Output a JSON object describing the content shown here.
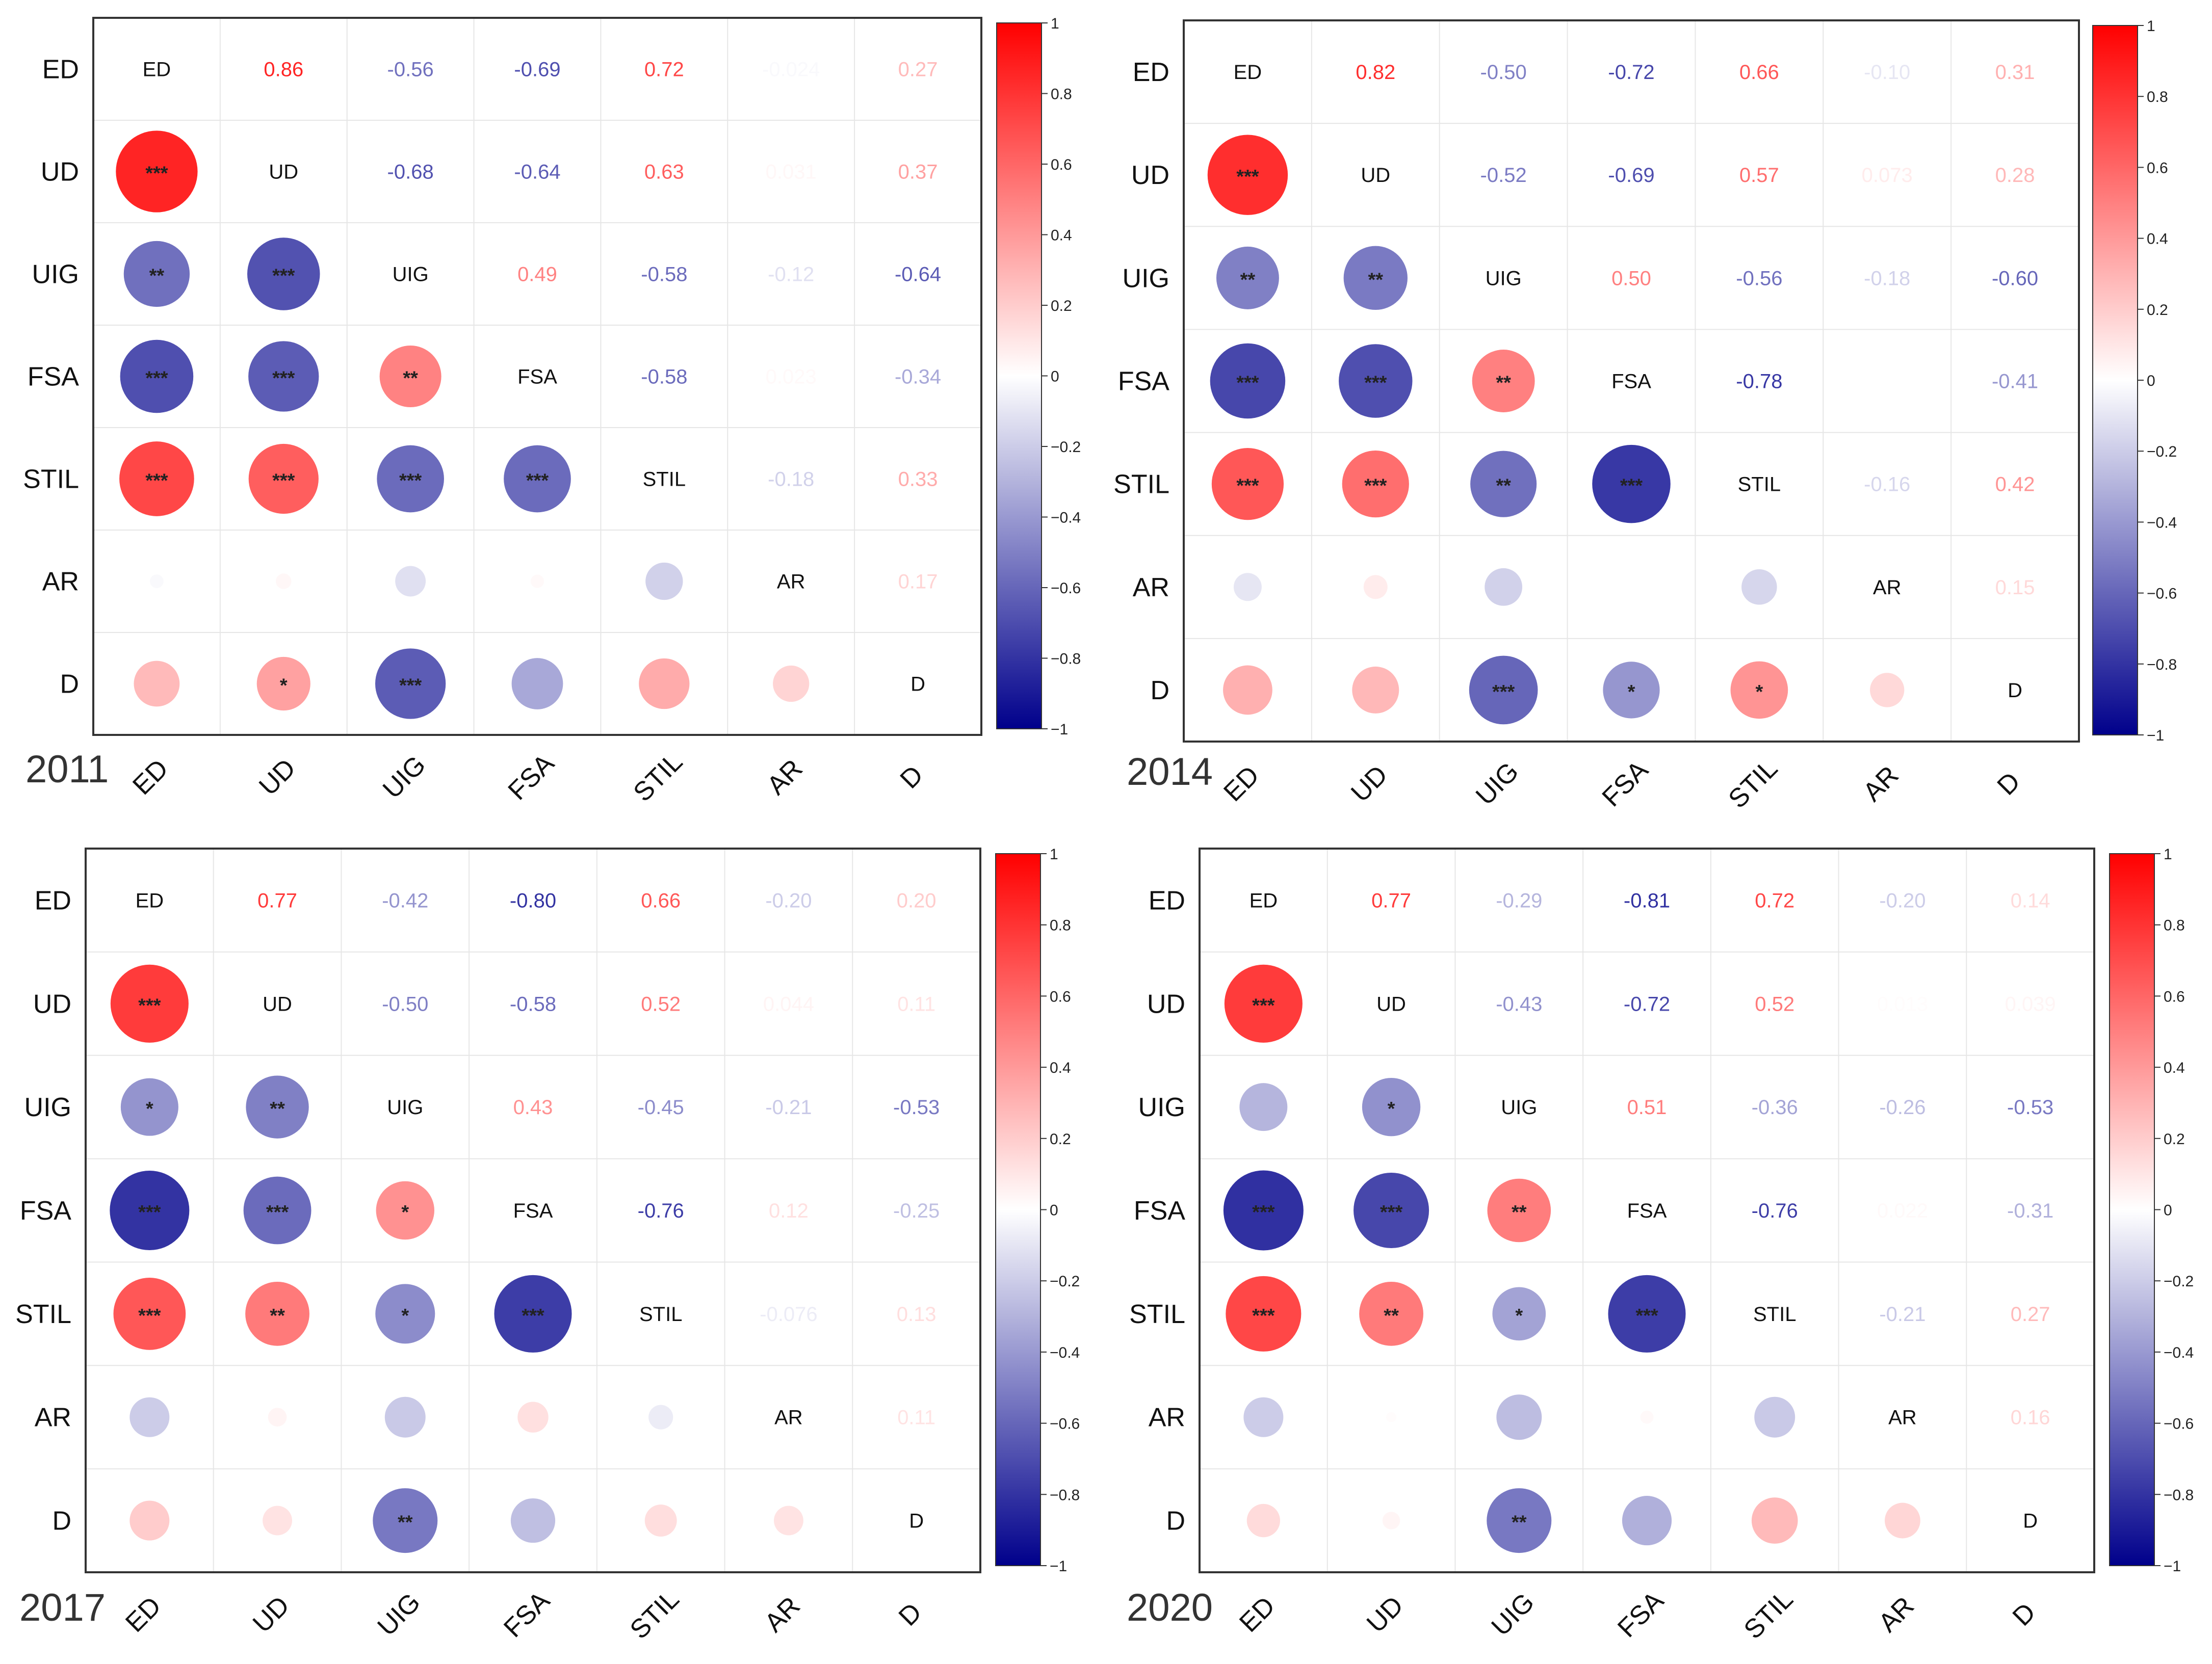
{
  "variables": [
    "ED",
    "UD",
    "UIG",
    "FSA",
    "STIL",
    "AR",
    "D"
  ],
  "colorbar": {
    "ticks": [
      "1",
      "0.8",
      "0.6",
      "0.4",
      "0.2",
      "0",
      "−0.2",
      "−0.4",
      "−0.6",
      "−0.8",
      "−1"
    ],
    "low_color": "#00008B",
    "mid_color": "#FFFFFF",
    "high_color": "#FF0000"
  },
  "chart_data": [
    {
      "type": "heatmap",
      "title": "2011",
      "variables": [
        "ED",
        "UD",
        "UIG",
        "FSA",
        "STIL",
        "AR",
        "D"
      ],
      "matrix": [
        [
          1,
          0.86,
          -0.56,
          -0.69,
          0.72,
          -0.024,
          0.27
        ],
        [
          0.86,
          1,
          -0.68,
          -0.64,
          0.63,
          0.031,
          0.37
        ],
        [
          -0.56,
          -0.68,
          1,
          0.49,
          -0.58,
          -0.12,
          -0.64
        ],
        [
          -0.69,
          -0.64,
          0.49,
          1,
          -0.58,
          0.023,
          -0.34
        ],
        [
          0.72,
          0.63,
          -0.58,
          -0.58,
          1,
          -0.18,
          0.33
        ],
        [
          -0.024,
          0.031,
          -0.12,
          0.023,
          -0.18,
          1,
          0.17
        ],
        [
          0.27,
          0.37,
          -0.64,
          -0.34,
          0.33,
          0.17,
          1
        ]
      ],
      "upper_labels": [
        [
          "",
          "0.86",
          "-0.56",
          "-0.69",
          "0.72",
          "-0.024",
          "0.27"
        ],
        [
          "",
          "",
          "-0.68",
          "-0.64",
          "0.63",
          "0.031",
          "0.37"
        ],
        [
          "",
          "",
          "",
          "0.49",
          "-0.58",
          "-0.12",
          "-0.64"
        ],
        [
          "",
          "",
          "",
          "",
          "-0.58",
          "0.023",
          "-0.34"
        ],
        [
          "",
          "",
          "",
          "",
          "",
          "-0.18",
          "0.33"
        ],
        [
          "",
          "",
          "",
          "",
          "",
          "",
          "0.17"
        ],
        [
          "",
          "",
          "",
          "",
          "",
          "",
          ""
        ]
      ],
      "significance": [
        [
          "",
          "",
          "",
          "",
          "",
          "",
          ""
        ],
        [
          "***",
          "",
          "",
          "",
          "",
          "",
          ""
        ],
        [
          "**",
          "***",
          "",
          "",
          "",
          "",
          ""
        ],
        [
          "***",
          "***",
          "**",
          "",
          "",
          "",
          ""
        ],
        [
          "***",
          "***",
          "***",
          "***",
          "",
          "",
          ""
        ],
        [
          "",
          "",
          "",
          "",
          "",
          "",
          ""
        ],
        [
          "",
          "*",
          "***",
          "",
          "",
          "",
          ""
        ]
      ]
    },
    {
      "type": "heatmap",
      "title": "2014",
      "variables": [
        "ED",
        "UD",
        "UIG",
        "FSA",
        "STIL",
        "AR",
        "D"
      ],
      "matrix": [
        [
          1,
          0.82,
          -0.5,
          -0.72,
          0.66,
          -0.1,
          0.31
        ],
        [
          0.82,
          1,
          -0.52,
          -0.69,
          0.57,
          0.073,
          0.28
        ],
        [
          -0.5,
          -0.52,
          1,
          0.5,
          -0.56,
          -0.18,
          -0.6
        ],
        [
          -0.72,
          -0.69,
          0.5,
          1,
          -0.78,
          0.0,
          -0.41
        ],
        [
          0.66,
          0.57,
          -0.56,
          -0.78,
          1,
          -0.16,
          0.42
        ],
        [
          -0.1,
          0.073,
          -0.18,
          0.0,
          -0.16,
          1,
          0.15
        ],
        [
          0.31,
          0.28,
          -0.6,
          -0.41,
          0.42,
          0.15,
          1
        ]
      ],
      "upper_labels": [
        [
          "",
          "0.82",
          "-0.50",
          "-0.72",
          "0.66",
          "-0.10",
          "0.31"
        ],
        [
          "",
          "",
          "-0.52",
          "-0.69",
          "0.57",
          "0.073",
          "0.28"
        ],
        [
          "",
          "",
          "",
          "0.50",
          "-0.56",
          "-0.18",
          "-0.60"
        ],
        [
          "",
          "",
          "",
          "",
          "-0.78",
          "",
          "-0.41"
        ],
        [
          "",
          "",
          "",
          "",
          "",
          "-0.16",
          "0.42"
        ],
        [
          "",
          "",
          "",
          "",
          "",
          "",
          "0.15"
        ],
        [
          "",
          "",
          "",
          "",
          "",
          "",
          ""
        ]
      ],
      "significance": [
        [
          "",
          "",
          "",
          "",
          "",
          "",
          ""
        ],
        [
          "***",
          "",
          "",
          "",
          "",
          "",
          ""
        ],
        [
          "**",
          "**",
          "",
          "",
          "",
          "",
          ""
        ],
        [
          "***",
          "***",
          "**",
          "",
          "",
          "",
          ""
        ],
        [
          "***",
          "***",
          "**",
          "***",
          "",
          "",
          ""
        ],
        [
          "",
          "",
          "",
          "",
          "",
          "",
          ""
        ],
        [
          "",
          "",
          "***",
          "*",
          "*",
          "",
          ""
        ]
      ]
    },
    {
      "type": "heatmap",
      "title": "2017",
      "variables": [
        "ED",
        "UD",
        "UIG",
        "FSA",
        "STIL",
        "AR",
        "D"
      ],
      "matrix": [
        [
          1,
          0.77,
          -0.42,
          -0.8,
          0.66,
          -0.2,
          0.2
        ],
        [
          0.77,
          1,
          -0.5,
          -0.58,
          0.52,
          0.044,
          0.11
        ],
        [
          -0.42,
          -0.5,
          1,
          0.43,
          -0.45,
          -0.21,
          -0.53
        ],
        [
          -0.8,
          -0.58,
          0.43,
          1,
          -0.76,
          0.12,
          -0.25
        ],
        [
          0.66,
          0.52,
          -0.45,
          -0.76,
          1,
          -0.076,
          0.13
        ],
        [
          -0.2,
          0.044,
          -0.21,
          0.12,
          -0.076,
          1,
          0.11
        ],
        [
          0.2,
          0.11,
          -0.53,
          -0.25,
          0.13,
          0.11,
          1
        ]
      ],
      "upper_labels": [
        [
          "",
          "0.77",
          "-0.42",
          "-0.80",
          "0.66",
          "-0.20",
          "0.20"
        ],
        [
          "",
          "",
          "-0.50",
          "-0.58",
          "0.52",
          "0.044",
          "0.11"
        ],
        [
          "",
          "",
          "",
          "0.43",
          "-0.45",
          "-0.21",
          "-0.53"
        ],
        [
          "",
          "",
          "",
          "",
          "-0.76",
          "0.12",
          "-0.25"
        ],
        [
          "",
          "",
          "",
          "",
          "",
          "-0.076",
          "0.13"
        ],
        [
          "",
          "",
          "",
          "",
          "",
          "",
          "0.11"
        ],
        [
          "",
          "",
          "",
          "",
          "",
          "",
          ""
        ]
      ],
      "significance": [
        [
          "",
          "",
          "",
          "",
          "",
          "",
          ""
        ],
        [
          "***",
          "",
          "",
          "",
          "",
          "",
          ""
        ],
        [
          "*",
          "**",
          "",
          "",
          "",
          "",
          ""
        ],
        [
          "***",
          "***",
          "*",
          "",
          "",
          "",
          ""
        ],
        [
          "***",
          "**",
          "*",
          "***",
          "",
          "",
          ""
        ],
        [
          "",
          "",
          "",
          "",
          "",
          "",
          ""
        ],
        [
          "",
          "",
          "**",
          "",
          "",
          "",
          ""
        ]
      ]
    },
    {
      "type": "heatmap",
      "title": "2020",
      "variables": [
        "ED",
        "UD",
        "UIG",
        "FSA",
        "STIL",
        "AR",
        "D"
      ],
      "matrix": [
        [
          1,
          0.77,
          -0.29,
          -0.81,
          0.72,
          -0.2,
          0.14
        ],
        [
          0.77,
          1,
          -0.43,
          -0.72,
          0.52,
          0.013,
          0.039
        ],
        [
          -0.29,
          -0.43,
          1,
          0.51,
          -0.36,
          -0.26,
          -0.53
        ],
        [
          -0.81,
          -0.72,
          0.51,
          1,
          -0.76,
          0.022,
          -0.31
        ],
        [
          0.72,
          0.52,
          -0.36,
          -0.76,
          1,
          -0.21,
          0.27
        ],
        [
          -0.2,
          0.013,
          -0.26,
          0.022,
          -0.21,
          1,
          0.16
        ],
        [
          0.14,
          0.039,
          -0.53,
          -0.31,
          0.27,
          0.16,
          1
        ]
      ],
      "upper_labels": [
        [
          "",
          "0.77",
          "-0.29",
          "-0.81",
          "0.72",
          "-0.20",
          "0.14"
        ],
        [
          "",
          "",
          "-0.43",
          "-0.72",
          "0.52",
          "0.013",
          "0.039"
        ],
        [
          "",
          "",
          "",
          "0.51",
          "-0.36",
          "-0.26",
          "-0.53"
        ],
        [
          "",
          "",
          "",
          "",
          "-0.76",
          "0.022",
          "-0.31"
        ],
        [
          "",
          "",
          "",
          "",
          "",
          "-0.21",
          "0.27"
        ],
        [
          "",
          "",
          "",
          "",
          "",
          "",
          "0.16"
        ],
        [
          "",
          "",
          "",
          "",
          "",
          "",
          ""
        ]
      ],
      "significance": [
        [
          "",
          "",
          "",
          "",
          "",
          "",
          ""
        ],
        [
          "***",
          "",
          "",
          "",
          "",
          "",
          ""
        ],
        [
          "",
          "*",
          "",
          "",
          "",
          "",
          ""
        ],
        [
          "***",
          "***",
          "**",
          "",
          "",
          "",
          ""
        ],
        [
          "***",
          "**",
          "*",
          "***",
          "",
          "",
          ""
        ],
        [
          "",
          "",
          "",
          "",
          "",
          "",
          ""
        ],
        [
          "",
          "",
          "**",
          "",
          "",
          "",
          ""
        ]
      ]
    }
  ]
}
